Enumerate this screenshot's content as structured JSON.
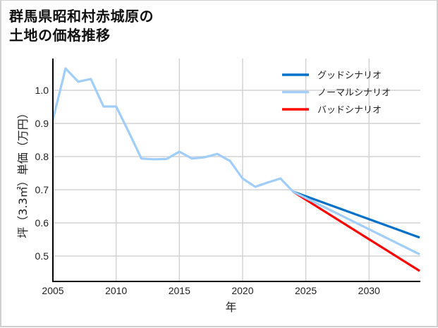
{
  "title": {
    "line1": "群馬県昭和村赤城原の",
    "line2": "土地の価格推移"
  },
  "colors": {
    "good": "#0070c8",
    "normal": "#a0cdfa",
    "bad": "#ff0000",
    "grid": "#d3d3d3",
    "axis": "#000000"
  },
  "legend": {
    "items": [
      {
        "label": "グッドシナリオ",
        "color": "#0070c8"
      },
      {
        "label": "ノーマルシナリオ",
        "color": "#a0cdfa"
      },
      {
        "label": "バッドシナリオ",
        "color": "#ff0000"
      }
    ]
  },
  "chart_data": {
    "type": "line",
    "title": "群馬県昭和村赤城原の土地の価格推移",
    "xlabel": "年",
    "ylabel": "坪（3.3㎡）単価（万円）",
    "xlim": [
      2005,
      2034
    ],
    "ylim": [
      0.43,
      1.09
    ],
    "xticks": [
      2005,
      2010,
      2015,
      2020,
      2025,
      2030
    ],
    "xtick_labels": [
      "2005",
      "2010",
      "2015",
      "2020",
      "2025",
      "2030"
    ],
    "yticks": [
      0.5,
      0.6,
      0.7,
      0.8,
      0.9,
      1.0
    ],
    "ytick_labels": [
      "0.5",
      "0.6",
      "0.7",
      "0.8",
      "0.9",
      "1.0"
    ],
    "grid": true,
    "legend_position": "upper right",
    "series": [
      {
        "name": "グッドシナリオ",
        "color": "#0070c8",
        "x": [
          2024,
          2034
        ],
        "values": [
          0.694,
          0.556
        ]
      },
      {
        "name": "ノーマルシナリオ",
        "color": "#a0cdfa",
        "x": [
          2005,
          2006,
          2007,
          2008,
          2009,
          2010,
          2011,
          2012,
          2013,
          2014,
          2015,
          2016,
          2017,
          2018,
          2019,
          2020,
          2021,
          2022,
          2023,
          2024,
          2034
        ],
        "values": [
          0.911,
          1.066,
          1.026,
          1.034,
          0.951,
          0.951,
          0.874,
          0.794,
          0.792,
          0.793,
          0.815,
          0.794,
          0.798,
          0.808,
          0.787,
          0.734,
          0.709,
          0.722,
          0.734,
          0.694,
          0.505
        ]
      },
      {
        "name": "バッドシナリオ",
        "color": "#ff0000",
        "x": [
          2024,
          2034
        ],
        "values": [
          0.694,
          0.455
        ]
      }
    ]
  }
}
